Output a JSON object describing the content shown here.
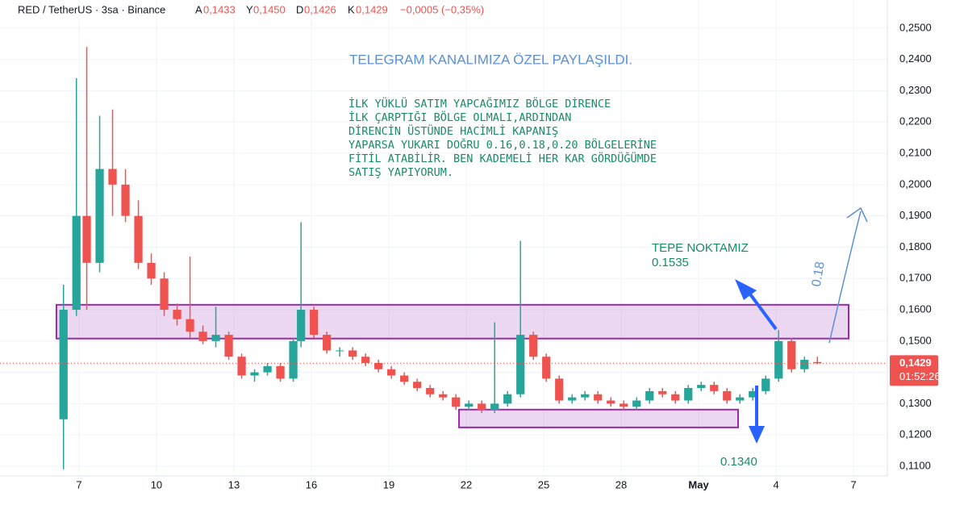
{
  "chart_data": {
    "type": "candlestick",
    "header": {
      "symbol": "RED / TetherUS · 3sa · Binance",
      "open_key": "A",
      "open": "0,1433",
      "high_key": "Y",
      "high": "0,1450",
      "low_key": "D",
      "low": "0,1426",
      "close_key": "K",
      "close": "0,1429",
      "change": "−0,0005 (−0,35%)"
    },
    "up_color": "#26a69a",
    "down_color": "#ef5350",
    "x": [
      6.4,
      6.9,
      7.3,
      7.8,
      8.3,
      8.8,
      9.3,
      9.8,
      10.3,
      10.8,
      11.3,
      11.8,
      12.3,
      12.8,
      13.3,
      13.8,
      14.3,
      14.8,
      15.3,
      15.6,
      16.1,
      16.6,
      17.1,
      17.6,
      18.1,
      18.6,
      19.1,
      19.6,
      20.1,
      20.6,
      21.1,
      21.6,
      22.1,
      22.6,
      23.1,
      23.6,
      24.1,
      24.6,
      25.1,
      25.6,
      26.1,
      26.6,
      27.1,
      27.6,
      28.1,
      28.6,
      29.1,
      29.6,
      30.1,
      30.6,
      31.1,
      31.6,
      32.1,
      32.6,
      33.1,
      33.6,
      34.1,
      34.6,
      35.1,
      35.6
    ],
    "open": [
      0.125,
      0.16,
      0.19,
      0.175,
      0.205,
      0.2,
      0.19,
      0.175,
      0.17,
      0.16,
      0.157,
      0.153,
      0.15,
      0.152,
      0.145,
      0.139,
      0.14,
      0.142,
      0.138,
      0.15,
      0.16,
      0.152,
      0.147,
      0.147,
      0.145,
      0.143,
      0.141,
      0.139,
      0.137,
      0.135,
      0.133,
      0.132,
      0.129,
      0.13,
      0.128,
      0.13,
      0.133,
      0.152,
      0.145,
      0.138,
      0.131,
      0.132,
      0.133,
      0.131,
      0.13,
      0.129,
      0.131,
      0.134,
      0.133,
      0.131,
      0.135,
      0.136,
      0.134,
      0.131,
      0.132,
      0.134,
      0.138,
      0.15,
      0.141,
      0.1433
    ],
    "high": [
      0.168,
      0.234,
      0.244,
      0.222,
      0.224,
      0.205,
      0.195,
      0.178,
      0.172,
      0.162,
      0.177,
      0.155,
      0.161,
      0.153,
      0.146,
      0.141,
      0.143,
      0.143,
      0.151,
      0.188,
      0.161,
      0.153,
      0.148,
      0.148,
      0.146,
      0.144,
      0.142,
      0.14,
      0.138,
      0.136,
      0.134,
      0.133,
      0.131,
      0.131,
      0.156,
      0.134,
      0.182,
      0.153,
      0.146,
      0.139,
      0.133,
      0.134,
      0.134,
      0.132,
      0.131,
      0.132,
      0.135,
      0.135,
      0.134,
      0.136,
      0.137,
      0.137,
      0.135,
      0.133,
      0.135,
      0.139,
      0.1535,
      0.151,
      0.145,
      0.145
    ],
    "low": [
      0.109,
      0.158,
      0.16,
      0.172,
      0.19,
      0.188,
      0.173,
      0.168,
      0.158,
      0.155,
      0.151,
      0.149,
      0.148,
      0.144,
      0.138,
      0.137,
      0.139,
      0.137,
      0.137,
      0.148,
      0.151,
      0.146,
      0.145,
      0.144,
      0.142,
      0.14,
      0.138,
      0.136,
      0.134,
      0.132,
      0.131,
      0.128,
      0.128,
      0.127,
      0.127,
      0.129,
      0.132,
      0.144,
      0.137,
      0.13,
      0.13,
      0.131,
      0.13,
      0.129,
      0.128,
      0.128,
      0.13,
      0.132,
      0.13,
      0.13,
      0.134,
      0.133,
      0.13,
      0.13,
      0.131,
      0.133,
      0.137,
      0.14,
      0.14,
      0.1426
    ],
    "close": [
      0.16,
      0.19,
      0.175,
      0.205,
      0.2,
      0.19,
      0.175,
      0.17,
      0.16,
      0.157,
      0.153,
      0.15,
      0.152,
      0.145,
      0.139,
      0.14,
      0.142,
      0.138,
      0.15,
      0.16,
      0.152,
      0.147,
      0.147,
      0.145,
      0.143,
      0.141,
      0.139,
      0.137,
      0.135,
      0.133,
      0.132,
      0.129,
      0.13,
      0.128,
      0.13,
      0.133,
      0.152,
      0.145,
      0.138,
      0.131,
      0.132,
      0.133,
      0.131,
      0.13,
      0.129,
      0.131,
      0.134,
      0.133,
      0.131,
      0.135,
      0.136,
      0.134,
      0.131,
      0.132,
      0.134,
      0.138,
      0.15,
      0.141,
      0.144,
      0.1429
    ],
    "xlim": [
      3.94,
      38.31
    ],
    "xticks": [
      7,
      10,
      13,
      16,
      19,
      22,
      25,
      28,
      {
        "value": 31,
        "label": "May"
      },
      {
        "value": 34,
        "label": "4"
      },
      {
        "value": 37,
        "label": "7"
      }
    ],
    "ylim": [
      0.1069,
      0.259
    ],
    "yticks": [
      {
        "value": 0.11,
        "label": "0,1100"
      },
      {
        "value": 0.12,
        "label": "0,1200"
      },
      {
        "value": 0.13,
        "label": "0,1300"
      },
      {
        "value": 0.14,
        "label": "0,1400"
      },
      {
        "value": 0.15,
        "label": "0,1500"
      },
      {
        "value": 0.16,
        "label": "0,1600"
      },
      {
        "value": 0.17,
        "label": "0,1700"
      },
      {
        "value": 0.18,
        "label": "0,1800"
      },
      {
        "value": 0.19,
        "label": "0,1900"
      },
      {
        "value": 0.2,
        "label": "0,2000"
      },
      {
        "value": 0.21,
        "label": "0,2100"
      },
      {
        "value": 0.22,
        "label": "0,2200"
      },
      {
        "value": 0.23,
        "label": "0,2300"
      },
      {
        "value": 0.24,
        "label": "0,2400"
      },
      {
        "value": 0.25,
        "label": "0,2500"
      }
    ],
    "zones": [
      {
        "x0": 6.125,
        "x1": 36.81,
        "y0": 0.1508,
        "y1": 0.1616
      },
      {
        "x0": 21.72,
        "x1": 32.53,
        "y0": 0.1224,
        "y1": 0.1281
      }
    ],
    "zone_color": "#9c27b0",
    "price_tag": {
      "value": 0.1429,
      "label": "0,1429",
      "countdown": "01:52:26"
    },
    "annotations": {
      "telegram": "TELEGRAM KANALIMIZA ÖZEL PAYLAŞILDI.",
      "note": [
        "İLK YÜKLÜ SATIM YAPCAĞIMIZ BÖLGE DİRENCE",
        "İLK ÇARPTIĞI BÖLGE OLMALI,ARDINDAN",
        "DİRENCİN ÜSTÜNDE HACİMLİ KAPANIŞ",
        "YAPARSA YUKARI DOĞRU 0.16,0.18,0.20 BÖLGELERİNE",
        "FİTİL ATABİLİR. BEN KADEMELİ HER KAR GÖRDÜĞÜMDE",
        "SATIŞ YAPIYORUM."
      ],
      "peak_title": "TEPE NOKTAMIZ",
      "peak_value": "0.1535",
      "target": "0.18",
      "bottom": "0.1340"
    }
  }
}
